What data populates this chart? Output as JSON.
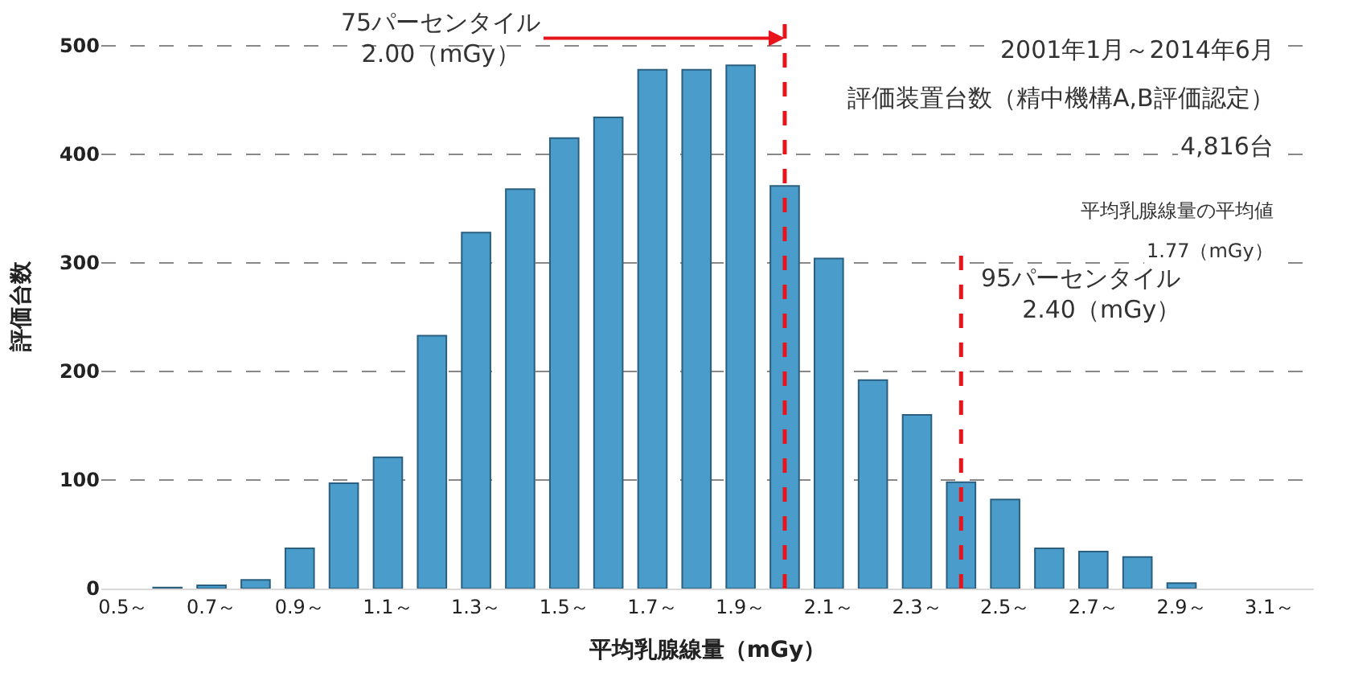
{
  "chart_data": {
    "type": "bar",
    "xlabel": "平均乳腺線量（mGy）",
    "ylabel": "評価台数",
    "x": [
      0.6,
      0.7,
      0.8,
      0.9,
      1.0,
      1.1,
      1.2,
      1.3,
      1.4,
      1.5,
      1.6,
      1.7,
      1.8,
      1.9,
      2.0,
      2.1,
      2.2,
      2.3,
      2.4,
      2.5,
      2.6,
      2.7,
      2.8,
      2.9
    ],
    "values": [
      1,
      3,
      8,
      37,
      97,
      121,
      233,
      328,
      368,
      415,
      434,
      478,
      478,
      482,
      371,
      304,
      192,
      160,
      98,
      82,
      37,
      34,
      29,
      5
    ],
    "color": "#4a9cca",
    "xlim": [
      0.45,
      3.2
    ],
    "xticks": [
      {
        "value": 0.5,
        "label": "0.5～"
      },
      {
        "value": 0.7,
        "label": "0.7～"
      },
      {
        "value": 0.9,
        "label": "0.9～"
      },
      {
        "value": 1.1,
        "label": "1.1～"
      },
      {
        "value": 1.3,
        "label": "1.3～"
      },
      {
        "value": 1.5,
        "label": "1.5～"
      },
      {
        "value": 1.7,
        "label": "1.7～"
      },
      {
        "value": 1.9,
        "label": "1.9～"
      },
      {
        "value": 2.1,
        "label": "2.1～"
      },
      {
        "value": 2.3,
        "label": "2.3～"
      },
      {
        "value": 2.5,
        "label": "2.5～"
      },
      {
        "value": 2.7,
        "label": "2.7～"
      },
      {
        "value": 2.9,
        "label": "2.9～"
      },
      {
        "value": 3.1,
        "label": "3.1～"
      }
    ],
    "ylim": [
      0,
      520
    ],
    "yticks": [
      0,
      100,
      200,
      300,
      400,
      500
    ],
    "grid": "y",
    "ref_lines": [
      {
        "axis": "x",
        "value": 2.0,
        "label": "75パーセンタイル\n2.00（mGy）",
        "color": "#e8141b",
        "line_style": "dashed"
      },
      {
        "axis": "x",
        "value": 2.4,
        "label": "95パーセンタイル\n2.40（mGy）",
        "color": "#e8141b",
        "line_style": "dashed"
      }
    ],
    "annotations": [
      "2001年1月～2014年6月",
      "評価装置台数（精中機構A,B評価認定）",
      "4,816台",
      "平均乳腺線量の平均値",
      "1.77（mGy）"
    ]
  }
}
